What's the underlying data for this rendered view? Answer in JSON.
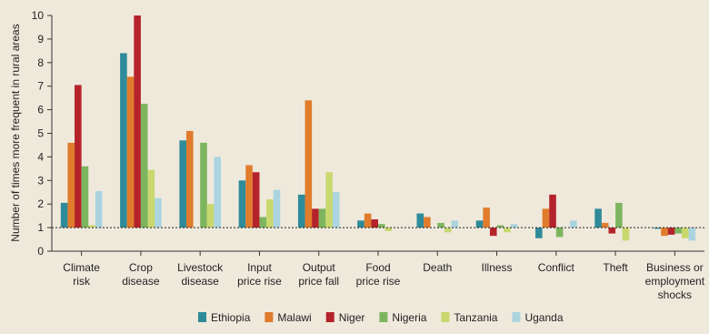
{
  "chart_data": {
    "type": "bar",
    "y_label": "Number of times more frequent in rural areas",
    "categories": [
      "Climate\nrisk",
      "Crop\ndisease",
      "Livestock\ndisease",
      "Input\nprice rise",
      "Output\nprice fall",
      "Food\nprice rise",
      "Death",
      "Illness",
      "Conflict",
      "Theft",
      "Business or\nemployment\nshocks"
    ],
    "series": [
      {
        "name": "Ethiopia",
        "color": "#2f8b99",
        "values": [
          2.05,
          8.4,
          4.7,
          3.0,
          2.4,
          1.3,
          1.6,
          1.3,
          0.55,
          1.8,
          0.95
        ]
      },
      {
        "name": "Malawi",
        "color": "#e07c2c",
        "values": [
          4.6,
          7.4,
          5.1,
          3.65,
          6.4,
          1.6,
          1.45,
          1.85,
          1.8,
          1.2,
          0.65
        ]
      },
      {
        "name": "Niger",
        "color": "#b5232a",
        "values": [
          7.05,
          10,
          null,
          3.35,
          1.8,
          1.35,
          null,
          0.65,
          2.4,
          0.75,
          0.7
        ]
      },
      {
        "name": "Nigeria",
        "color": "#7db55e",
        "values": [
          3.6,
          6.25,
          4.6,
          1.45,
          1.8,
          1.15,
          1.2,
          1.1,
          0.6,
          2.05,
          0.75
        ]
      },
      {
        "name": "Tanzania",
        "color": "#c8d86e",
        "values": [
          1.1,
          3.45,
          2.0,
          2.2,
          3.35,
          0.85,
          0.8,
          0.8,
          null,
          0.45,
          0.55
        ]
      },
      {
        "name": "Uganda",
        "color": "#abd4df",
        "values": [
          2.55,
          2.25,
          4.0,
          2.6,
          2.5,
          null,
          1.3,
          1.15,
          1.3,
          null,
          0.45
        ]
      }
    ],
    "reference_line": 1,
    "ylim": [
      0,
      10
    ],
    "yticks": [
      0,
      1,
      2,
      3,
      4,
      5,
      6,
      7,
      8,
      9,
      10
    ],
    "grid": false
  }
}
